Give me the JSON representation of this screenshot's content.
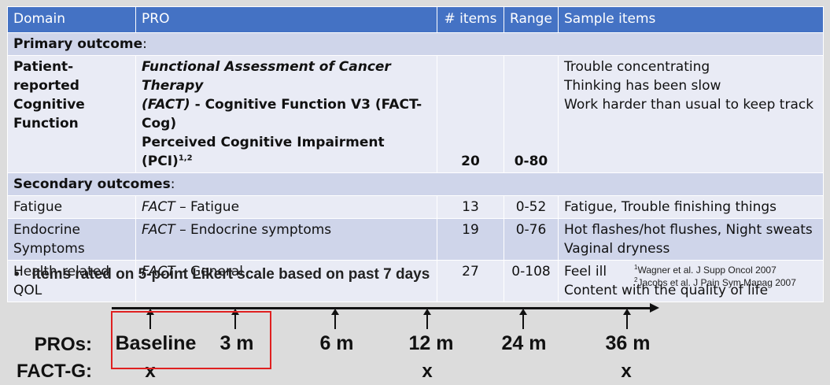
{
  "table": {
    "headers": [
      "Domain",
      "PRO",
      "# items",
      "Range",
      "Sample items"
    ],
    "primary_label": "Primary outcome",
    "secondary_label": "Secondary outcomes",
    "colon": ":",
    "primary": {
      "domain": [
        "Patient-reported",
        "Cognitive",
        "Function"
      ],
      "pro_line1": "Functional Assessment of Cancer Therapy",
      "pro_line2_italic": "(FACT)",
      "pro_line2_rest": " - Cognitive Function V3 (FACT-Cog)",
      "pro_line3": "Perceived Cognitive Impairment (PCI)",
      "pro_line3_sup": "1,2",
      "items": "20",
      "range": "0-80",
      "samples": [
        "Trouble concentrating",
        "Thinking has been slow",
        "Work harder than usual to keep track"
      ]
    },
    "rows": [
      {
        "domain": [
          "Fatigue"
        ],
        "pro_prefix": "FACT",
        "pro_rest": " – Fatigue",
        "items": "13",
        "range": "0-52",
        "samples": [
          "Fatigue, Trouble finishing things"
        ]
      },
      {
        "domain": [
          "Endocrine",
          "Symptoms"
        ],
        "pro_prefix": "FACT",
        "pro_rest": " – Endocrine symptoms",
        "items": "19",
        "range": "0-76",
        "samples": [
          "Hot flashes/hot flushes, Night sweats",
          "Vaginal dryness"
        ]
      },
      {
        "domain": [
          "Health-related",
          "QOL"
        ],
        "pro_prefix": "FACT",
        "pro_rest": " – General",
        "items": "27",
        "range": "0-108",
        "samples": [
          "Feel ill",
          "Content with the quality of life"
        ]
      }
    ]
  },
  "bullet": "Items rated on 5-point Likert scale based on past 7 days",
  "references": [
    {
      "sup": "1",
      "text": "Wagner et al. J Supp Oncol 2007"
    },
    {
      "sup": "2",
      "text": "Jacobs et al. J Pain Sym Manag 2007"
    }
  ],
  "timeline": {
    "pros_label": "PROs:",
    "factg_label": "FACT-G:",
    "points": [
      "Baseline",
      "3 m",
      "6 m",
      "12 m",
      "24 m",
      "36 m"
    ],
    "factg_marks": [
      "x",
      "x",
      "x"
    ],
    "highlight_color": "#e02020"
  }
}
